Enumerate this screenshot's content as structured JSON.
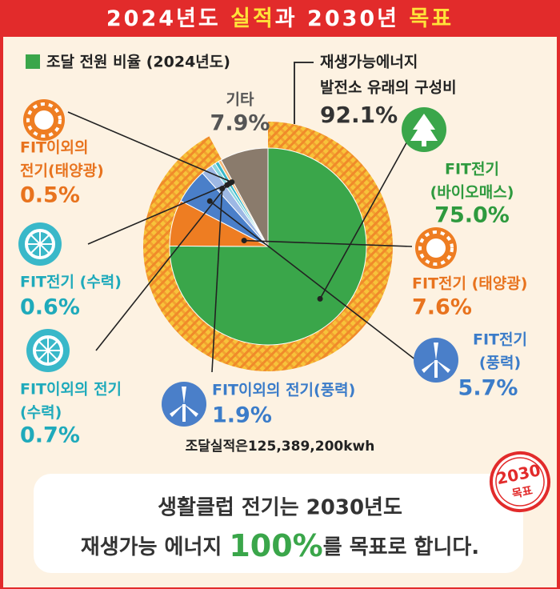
{
  "header": {
    "title_parts": [
      "2024년도 ",
      "실적",
      "과 2030년 ",
      "목표"
    ]
  },
  "chart_data": {
    "type": "pie",
    "legend": "조달 전원 비율 (2024년도)",
    "slices": [
      {
        "label": [
          "FIT전기",
          "(바이오매스)"
        ],
        "value": 75.0,
        "value_label": "75.0%",
        "color": "#3aa64a"
      },
      {
        "label": [
          "FIT전기 (태양광)"
        ],
        "value": 7.6,
        "value_label": "7.6%",
        "color": "#ee7d22"
      },
      {
        "label": [
          "FIT전기",
          "(풍력)"
        ],
        "value": 5.7,
        "value_label": "5.7%",
        "color": "#4a7fc9"
      },
      {
        "label": [
          "FIT이외의 전기(풍력)"
        ],
        "value": 1.9,
        "value_label": "1.9%",
        "color": "#9db8e4"
      },
      {
        "label": [
          "FIT이외의 전기",
          "(수력)"
        ],
        "value": 0.7,
        "value_label": "0.7%",
        "color": "#8ad7e0"
      },
      {
        "label": [
          "FIT전기 (수력)"
        ],
        "value": 0.6,
        "value_label": "0.6%",
        "color": "#39b8c9"
      },
      {
        "label": [
          "FIT이외의",
          "전기(태양광)"
        ],
        "value": 0.5,
        "value_label": "0.5%",
        "color": "#f5b97a"
      },
      {
        "label": [
          "기타"
        ],
        "value": 7.9,
        "value_label": "7.9%",
        "color": "#8a7b6c"
      }
    ],
    "renewable": {
      "label": [
        "재생가능에너지",
        "발전소 유래의 구성비"
      ],
      "value": 92.1,
      "value_label": "92.1%"
    },
    "note": "조달실적은125,389,200kwh"
  },
  "footer": {
    "line1": "생활클럽 전기는 2030년도",
    "line2_parts": [
      "재생가능 에너지 ",
      "100%",
      "를 목표로 합니다."
    ],
    "stamp": [
      "2030",
      "목표"
    ]
  }
}
